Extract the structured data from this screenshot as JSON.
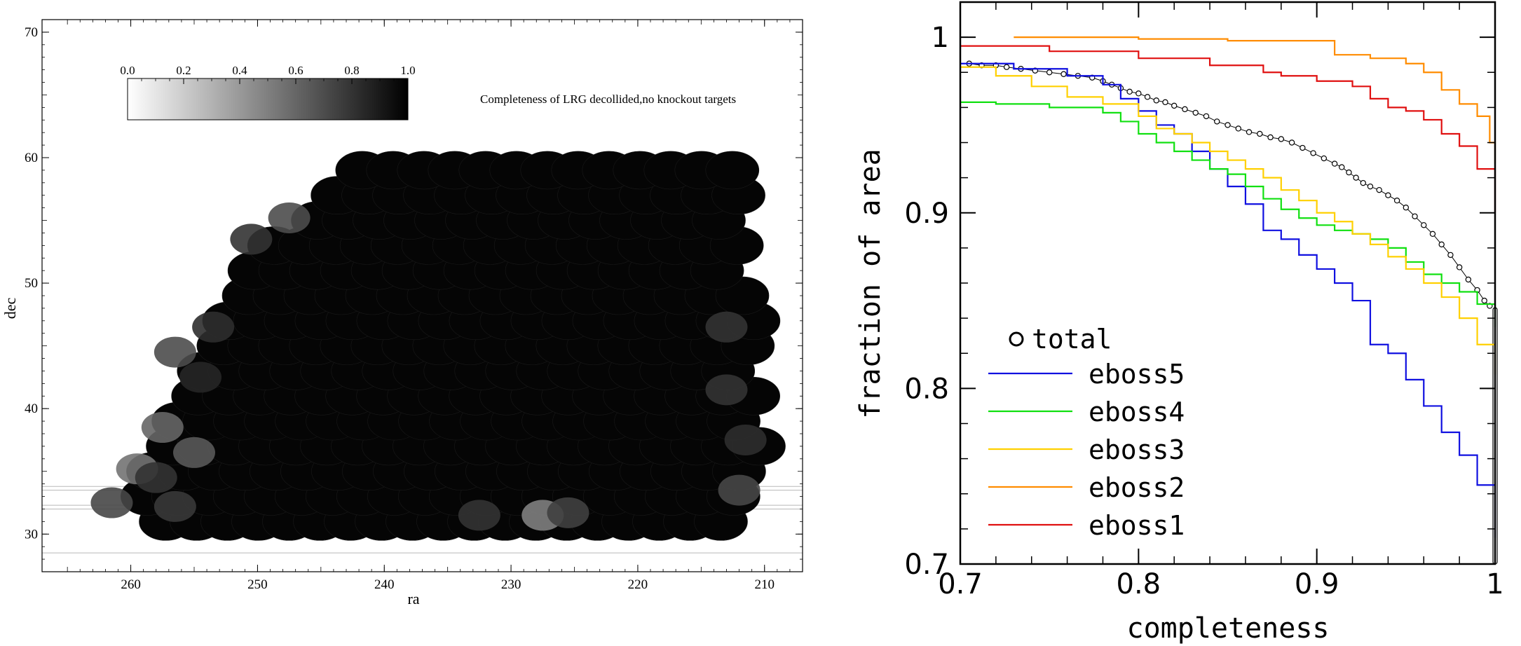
{
  "chart_data": [
    {
      "type": "heatmap",
      "xlabel": "ra",
      "ylabel": "dec",
      "annotation": "Completeness of LRG decollided,no knockout targets",
      "x_ticks": [
        260,
        250,
        240,
        230,
        220,
        210
      ],
      "y_ticks": [
        30,
        40,
        50,
        60,
        70
      ],
      "xlim": [
        267,
        207
      ],
      "ylim": [
        27,
        71
      ],
      "colorbar": {
        "ticks": [
          "0.0",
          "0.2",
          "0.4",
          "0.6",
          "0.8",
          "1.0"
        ],
        "range": [
          0,
          1
        ]
      },
      "footprint": [
        {
          "dec": 31,
          "ra_min": 258.5,
          "ra_max": 211
        },
        {
          "dec": 33,
          "ra_min": 260.5,
          "ra_max": 210
        },
        {
          "dec": 35,
          "ra_min": 259.5,
          "ra_max": 210
        },
        {
          "dec": 37,
          "ra_min": 258.5,
          "ra_max": 210
        },
        {
          "dec": 39,
          "ra_min": 257.5,
          "ra_max": 210
        },
        {
          "dec": 41,
          "ra_min": 256.5,
          "ra_max": 210
        },
        {
          "dec": 43,
          "ra_min": 255.5,
          "ra_max": 210
        },
        {
          "dec": 45,
          "ra_min": 254.5,
          "ra_max": 210
        },
        {
          "dec": 47,
          "ra_min": 253.5,
          "ra_max": 210
        },
        {
          "dec": 49,
          "ra_min": 252.5,
          "ra_max": 210
        },
        {
          "dec": 51,
          "ra_min": 251.5,
          "ra_max": 211
        },
        {
          "dec": 53,
          "ra_min": 250.5,
          "ra_max": 211
        },
        {
          "dec": 55,
          "ra_min": 246.5,
          "ra_max": 211
        },
        {
          "dec": 57,
          "ra_min": 245.5,
          "ra_max": 211
        },
        {
          "dec": 59,
          "ra_min": 243,
          "ra_max": 211
        }
      ],
      "tiles": [
        {
          "ra": 256.5,
          "dec": 44.5,
          "value": 0.7
        },
        {
          "ra": 257.5,
          "dec": 38.5,
          "value": 0.6
        },
        {
          "ra": 259.5,
          "dec": 35.2,
          "value": 0.55
        },
        {
          "ra": 261.5,
          "dec": 32.5,
          "value": 0.72
        },
        {
          "ra": 255,
          "dec": 36.5,
          "value": 0.65
        },
        {
          "ra": 227.5,
          "dec": 31.5,
          "value": 0.5
        },
        {
          "ra": 225.5,
          "dec": 31.7,
          "value": 0.75
        },
        {
          "ra": 232.5,
          "dec": 31.5,
          "value": 0.8
        },
        {
          "ra": 212,
          "dec": 33.5,
          "value": 0.72
        },
        {
          "ra": 213,
          "dec": 46.5,
          "value": 0.8
        },
        {
          "ra": 213,
          "dec": 41.5,
          "value": 0.8
        },
        {
          "ra": 211.5,
          "dec": 37.5,
          "value": 0.82
        },
        {
          "ra": 247.5,
          "dec": 55.2,
          "value": 0.7
        },
        {
          "ra": 250.5,
          "dec": 53.5,
          "value": 0.8
        },
        {
          "ra": 253.5,
          "dec": 46.5,
          "value": 0.82
        },
        {
          "ra": 254.5,
          "dec": 42.5,
          "value": 0.85
        },
        {
          "ra": 258,
          "dec": 34.5,
          "value": 0.8
        },
        {
          "ra": 256.5,
          "dec": 32.2,
          "value": 0.78
        }
      ],
      "guide_lines_dec": [
        28.5,
        32,
        32.3,
        33.5,
        33.8
      ]
    },
    {
      "type": "line",
      "xlabel": "completeness",
      "ylabel": "fraction of area",
      "xlim": [
        0.7,
        1.0
      ],
      "ylim": [
        0.7,
        1.02
      ],
      "x_ticks": [
        0.7,
        0.8,
        0.9,
        1
      ],
      "y_ticks": [
        0.7,
        0.8,
        0.9,
        1
      ],
      "legend_position": "bottom-left",
      "series": [
        {
          "name": "total",
          "style": "circles",
          "color": "#000000",
          "x": [
            0.705,
            0.712,
            0.72,
            0.726,
            0.734,
            0.742,
            0.75,
            0.758,
            0.766,
            0.774,
            0.78,
            0.785,
            0.79,
            0.795,
            0.8,
            0.805,
            0.81,
            0.815,
            0.82,
            0.826,
            0.832,
            0.838,
            0.844,
            0.85,
            0.856,
            0.862,
            0.868,
            0.874,
            0.88,
            0.886,
            0.892,
            0.898,
            0.904,
            0.91,
            0.914,
            0.918,
            0.922,
            0.926,
            0.93,
            0.935,
            0.94,
            0.945,
            0.95,
            0.955,
            0.96,
            0.965,
            0.97,
            0.975,
            0.98,
            0.985,
            0.99,
            0.994,
            0.997
          ],
          "y": [
            0.985,
            0.984,
            0.984,
            0.983,
            0.982,
            0.981,
            0.98,
            0.979,
            0.978,
            0.977,
            0.975,
            0.973,
            0.971,
            0.969,
            0.968,
            0.966,
            0.964,
            0.963,
            0.961,
            0.959,
            0.957,
            0.955,
            0.952,
            0.95,
            0.948,
            0.946,
            0.945,
            0.943,
            0.942,
            0.94,
            0.937,
            0.934,
            0.931,
            0.928,
            0.926,
            0.923,
            0.92,
            0.917,
            0.915,
            0.913,
            0.91,
            0.907,
            0.903,
            0.898,
            0.893,
            0.888,
            0.882,
            0.876,
            0.869,
            0.862,
            0.856,
            0.85,
            0.847
          ]
        },
        {
          "name": "eboss5",
          "color": "#1010e0",
          "x": [
            0.7,
            0.73,
            0.76,
            0.78,
            0.79,
            0.8,
            0.81,
            0.82,
            0.83,
            0.84,
            0.85,
            0.86,
            0.87,
            0.88,
            0.89,
            0.9,
            0.91,
            0.92,
            0.93,
            0.94,
            0.95,
            0.96,
            0.97,
            0.98,
            0.99,
            1.0
          ],
          "y": [
            0.985,
            0.982,
            0.978,
            0.973,
            0.965,
            0.958,
            0.95,
            0.945,
            0.935,
            0.925,
            0.915,
            0.905,
            0.89,
            0.885,
            0.876,
            0.868,
            0.86,
            0.85,
            0.825,
            0.82,
            0.805,
            0.79,
            0.775,
            0.762,
            0.745,
            0.715
          ]
        },
        {
          "name": "eboss4",
          "color": "#10e010",
          "x": [
            0.7,
            0.72,
            0.75,
            0.78,
            0.79,
            0.8,
            0.81,
            0.82,
            0.83,
            0.84,
            0.85,
            0.86,
            0.87,
            0.88,
            0.89,
            0.9,
            0.91,
            0.92,
            0.93,
            0.94,
            0.95,
            0.96,
            0.97,
            0.98,
            0.99,
            1.0
          ],
          "y": [
            0.963,
            0.962,
            0.96,
            0.957,
            0.952,
            0.945,
            0.94,
            0.935,
            0.93,
            0.925,
            0.922,
            0.915,
            0.908,
            0.902,
            0.897,
            0.893,
            0.89,
            0.888,
            0.885,
            0.88,
            0.872,
            0.865,
            0.86,
            0.855,
            0.848,
            0.835
          ]
        },
        {
          "name": "eboss3",
          "color": "#ffd000",
          "x": [
            0.7,
            0.72,
            0.74,
            0.76,
            0.78,
            0.8,
            0.81,
            0.82,
            0.83,
            0.84,
            0.85,
            0.86,
            0.87,
            0.88,
            0.89,
            0.9,
            0.91,
            0.92,
            0.93,
            0.94,
            0.95,
            0.96,
            0.97,
            0.98,
            0.99,
            1.0
          ],
          "y": [
            0.983,
            0.978,
            0.972,
            0.966,
            0.962,
            0.955,
            0.948,
            0.945,
            0.94,
            0.935,
            0.93,
            0.925,
            0.92,
            0.913,
            0.907,
            0.9,
            0.895,
            0.888,
            0.882,
            0.875,
            0.868,
            0.86,
            0.852,
            0.84,
            0.825,
            0.808
          ]
        },
        {
          "name": "eboss2",
          "color": "#ff8c00",
          "x": [
            0.73,
            0.8,
            0.85,
            0.905,
            0.91,
            0.93,
            0.95,
            0.96,
            0.97,
            0.98,
            0.99,
            0.997,
            1.0
          ],
          "y": [
            1.0,
            0.999,
            0.998,
            0.998,
            0.99,
            0.988,
            0.985,
            0.98,
            0.97,
            0.962,
            0.955,
            0.94,
            0.928
          ]
        },
        {
          "name": "eboss1",
          "color": "#e01010",
          "x": [
            0.7,
            0.75,
            0.8,
            0.84,
            0.87,
            0.88,
            0.9,
            0.92,
            0.93,
            0.94,
            0.95,
            0.96,
            0.97,
            0.98,
            0.99,
            1.0
          ],
          "y": [
            0.995,
            0.992,
            0.988,
            0.984,
            0.98,
            0.978,
            0.975,
            0.972,
            0.965,
            0.96,
            0.958,
            0.953,
            0.945,
            0.938,
            0.925,
            0.9
          ]
        }
      ]
    }
  ]
}
